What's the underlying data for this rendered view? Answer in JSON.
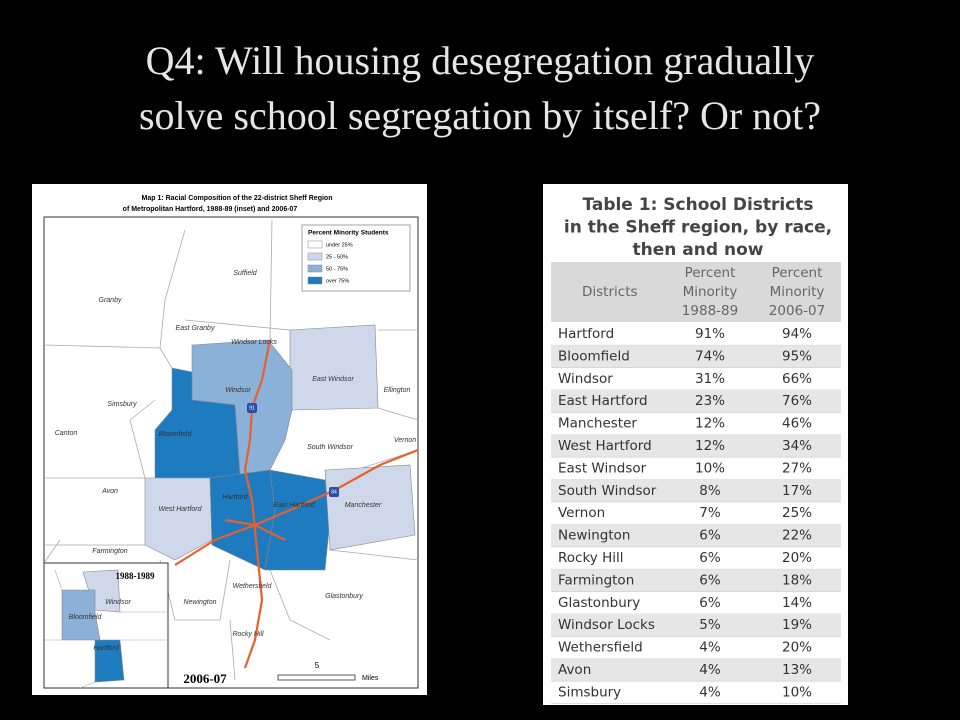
{
  "title": [
    "Q4: Will housing desegregation gradually",
    "solve school segregation by itself? Or not?"
  ],
  "map": {
    "title": [
      "Map 1: Racial Composition of the 22-district Sheff Region",
      "of Metropolitan Hartford, 1988-89 (inset) and 2006-07"
    ],
    "legend": {
      "title": "Percent Minority Students",
      "items": [
        "under 25%",
        "25 - 50%",
        "50 - 75%",
        "over 75%"
      ]
    },
    "towns": [
      "Suffield",
      "Granby",
      "East Granby",
      "Windsor Locks",
      "Windsor",
      "East Windsor",
      "Ellington",
      "Simsbury",
      "Bloomfield",
      "Canton",
      "South Windsor",
      "Vernon",
      "Avon",
      "West Hartford",
      "Hartford",
      "East Hartford",
      "Manchester",
      "Farmington",
      "Wethersfield",
      "Newington",
      "Glastonbury",
      "Rocky Hill"
    ],
    "highways": [
      "91",
      "84"
    ],
    "inset": {
      "label": "1988-1989",
      "towns": [
        "Windsor",
        "Bloomfield",
        "Hartford"
      ]
    },
    "year_label": "2006-07",
    "scale": {
      "value": "5",
      "unit": "Miles"
    }
  },
  "table": {
    "title": [
      "Table 1: School Districts",
      "in the Sheff region, by race,",
      "then and now"
    ],
    "headers": [
      [
        "Districts"
      ],
      [
        "Percent",
        "Minority",
        "1988-89"
      ],
      [
        "Percent",
        "Minority",
        "2006-07"
      ]
    ],
    "rows": [
      [
        "Hartford",
        "91%",
        "94%"
      ],
      [
        "Bloomfield",
        "74%",
        "95%"
      ],
      [
        "Windsor",
        "31%",
        "66%"
      ],
      [
        "East Hartford",
        "23%",
        "76%"
      ],
      [
        "Manchester",
        "12%",
        "46%"
      ],
      [
        "West Hartford",
        "12%",
        "34%"
      ],
      [
        "East Windsor",
        "10%",
        "27%"
      ],
      [
        "South Windsor",
        "8%",
        "17%"
      ],
      [
        "Vernon",
        "7%",
        "25%"
      ],
      [
        "Newington",
        "6%",
        "22%"
      ],
      [
        "Rocky Hill",
        "6%",
        "20%"
      ],
      [
        "Farmington",
        "6%",
        "18%"
      ],
      [
        "Glastonbury",
        "6%",
        "14%"
      ],
      [
        "Windsor Locks",
        "5%",
        "19%"
      ],
      [
        "Wethersfield",
        "4%",
        "20%"
      ],
      [
        "Avon",
        "4%",
        "13%"
      ],
      [
        "Simsbury",
        "4%",
        "10%"
      ]
    ]
  }
}
